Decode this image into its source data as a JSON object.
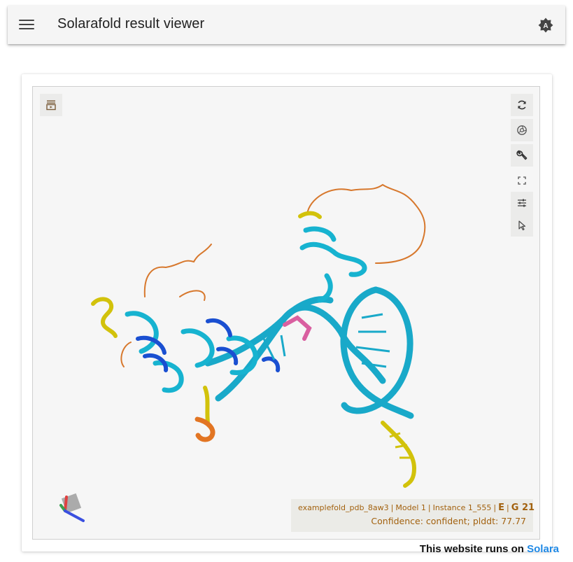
{
  "appbar": {
    "title": "Solarafold result viewer",
    "menu_icon": "hamburger-menu-icon",
    "theme_icon": "brightness-auto-icon"
  },
  "viewer": {
    "toolbar_left": [
      {
        "icon": "toggle-controls-icon"
      }
    ],
    "toolbar_right": [
      {
        "icon": "reset-camera-icon"
      },
      {
        "icon": "screenshot-icon"
      },
      {
        "icon": "wrench-icon"
      },
      {
        "icon": "fullscreen-icon"
      },
      {
        "icon": "settings-sliders-icon"
      },
      {
        "icon": "select-pointer-icon"
      }
    ],
    "info": {
      "entry": "examplefold_pdb_8aw3",
      "model": "Model 1",
      "instance": "Instance 1_555",
      "chain": "E",
      "residue": "G 21",
      "confidence": "Confidence: confident; plddt: 77.77"
    }
  },
  "footer": {
    "prefix": "This website runs on",
    "link": "Solara"
  },
  "colors": {
    "accent_text": "#a2610e",
    "link": "#1e88e5",
    "very_high_confidence": "#0053d6",
    "confident": "#17b3d0",
    "low_confidence": "#d2c20b",
    "very_low_confidence": "#e27523"
  }
}
